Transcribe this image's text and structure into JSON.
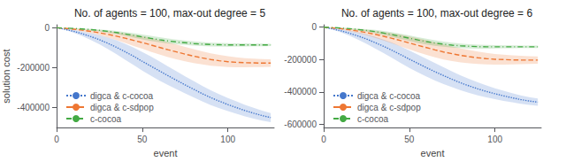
{
  "chart_data": [
    {
      "type": "line",
      "title": "No. of agents = 100, max-out degree = 5",
      "xlabel": "event",
      "ylabel": "solution cost",
      "x": [
        0,
        5,
        10,
        15,
        20,
        25,
        30,
        35,
        40,
        45,
        50,
        55,
        60,
        65,
        70,
        75,
        80,
        85,
        90,
        95,
        100,
        105,
        110,
        115,
        120,
        125
      ],
      "series": [
        {
          "name": "digca & c-cocoa",
          "color": "#4477CC",
          "line_style": "dotted",
          "values": [
            0,
            -8000,
            -18000,
            -30000,
            -44000,
            -60000,
            -78000,
            -98000,
            -120000,
            -143000,
            -168000,
            -192000,
            -216000,
            -240000,
            -263000,
            -286000,
            -308000,
            -330000,
            -350000,
            -368000,
            -385000,
            -400000,
            -415000,
            -428000,
            -440000,
            -450000
          ],
          "std": [
            0,
            3000,
            7000,
            12000,
            17000,
            23000,
            29000,
            35000,
            40000,
            44000,
            47000,
            48000,
            48000,
            47000,
            45000,
            43000,
            41000,
            39000,
            37000,
            35000,
            33000,
            31000,
            29000,
            27000,
            25000,
            23000
          ]
        },
        {
          "name": "digca & c-sdpop",
          "color": "#EE7733",
          "line_style": "dashed",
          "values": [
            0,
            -3000,
            -7000,
            -12000,
            -18000,
            -25000,
            -33000,
            -42000,
            -52000,
            -63000,
            -74000,
            -86000,
            -98000,
            -110000,
            -121000,
            -132000,
            -142000,
            -151000,
            -159000,
            -165000,
            -170000,
            -173000,
            -175000,
            -176000,
            -177000,
            -177000
          ],
          "std": [
            0,
            1500,
            3500,
            6000,
            9000,
            12000,
            16000,
            20000,
            24000,
            28000,
            31000,
            34000,
            36000,
            37000,
            37000,
            36000,
            35000,
            33000,
            31000,
            29000,
            27000,
            25000,
            23000,
            21000,
            20000,
            19000
          ]
        },
        {
          "name": "c-cocoa",
          "color": "#44AA44",
          "line_style": "dashdot",
          "values": [
            0,
            -1500,
            -3500,
            -6000,
            -9000,
            -13000,
            -18000,
            -24000,
            -31000,
            -38000,
            -46000,
            -53000,
            -60000,
            -66000,
            -71000,
            -75000,
            -79000,
            -82000,
            -84000,
            -85000,
            -86000,
            -86000,
            -86000,
            -86000,
            -86000,
            -86000
          ],
          "std": [
            0,
            600,
            1400,
            2400,
            3600,
            5000,
            6500,
            8000,
            9500,
            11000,
            12000,
            12500,
            12500,
            12000,
            11500,
            11000,
            10500,
            10000,
            9500,
            9000,
            8500,
            8000,
            7500,
            7000,
            6500,
            6000
          ]
        }
      ],
      "xlim": [
        0,
        127
      ],
      "xticks": [
        0,
        50,
        100
      ],
      "ylim": [
        -500000,
        15000
      ],
      "yticks": [
        0,
        -200000,
        -400000
      ],
      "legend": "lower left",
      "grid": false
    },
    {
      "type": "line",
      "title": "No. of agents = 100, max-out degree = 6",
      "xlabel": "event",
      "x": [
        0,
        5,
        10,
        15,
        20,
        25,
        30,
        35,
        40,
        45,
        50,
        55,
        60,
        65,
        70,
        75,
        80,
        85,
        90,
        95,
        100,
        105,
        110,
        115,
        120,
        125
      ],
      "series": [
        {
          "name": "digca & c-cocoa",
          "color": "#4477CC",
          "line_style": "dotted",
          "values": [
            0,
            -10000,
            -22000,
            -37000,
            -54000,
            -73000,
            -95000,
            -118000,
            -143000,
            -170000,
            -197000,
            -224000,
            -250000,
            -275000,
            -299000,
            -322000,
            -344000,
            -363000,
            -381000,
            -397000,
            -411000,
            -424000,
            -436000,
            -447000,
            -456000,
            -463000
          ],
          "std": [
            0,
            4000,
            9000,
            15000,
            22000,
            29000,
            36000,
            42000,
            47000,
            51000,
            54000,
            55000,
            55000,
            54000,
            52000,
            49000,
            46000,
            43000,
            40000,
            37000,
            34000,
            31000,
            28000,
            26000,
            24000,
            22000
          ]
        },
        {
          "name": "digca & c-sdpop",
          "color": "#EE7733",
          "line_style": "dashed",
          "values": [
            0,
            -4000,
            -9000,
            -16000,
            -24000,
            -33000,
            -44000,
            -56000,
            -69000,
            -83000,
            -97000,
            -112000,
            -126000,
            -140000,
            -153000,
            -164000,
            -174000,
            -182000,
            -189000,
            -194000,
            -198000,
            -200000,
            -202000,
            -203000,
            -203000,
            -203000
          ],
          "std": [
            0,
            2000,
            4500,
            8000,
            12000,
            16000,
            21000,
            26000,
            31000,
            36000,
            40000,
            43000,
            45000,
            46000,
            46000,
            45000,
            43000,
            41000,
            38000,
            36000,
            33000,
            31000,
            28000,
            26000,
            24000,
            23000
          ]
        },
        {
          "name": "c-cocoa",
          "color": "#44AA44",
          "line_style": "dashdot",
          "values": [
            0,
            -2000,
            -5000,
            -9000,
            -14000,
            -20000,
            -27000,
            -36000,
            -46000,
            -57000,
            -68000,
            -79000,
            -89000,
            -98000,
            -105000,
            -111000,
            -115000,
            -118000,
            -120000,
            -121000,
            -121000,
            -121000,
            -121000,
            -121000,
            -121000,
            -121000
          ],
          "std": [
            0,
            800,
            2000,
            3500,
            5500,
            7500,
            10000,
            12500,
            14500,
            16000,
            17000,
            17500,
            17500,
            17000,
            16000,
            15000,
            14000,
            13000,
            12000,
            11000,
            10000,
            9000,
            8500,
            8000,
            7500,
            7000
          ]
        }
      ],
      "xlim": [
        0,
        127
      ],
      "xticks": [
        0,
        50,
        100
      ],
      "ylim": [
        -620000,
        15000
      ],
      "yticks": [
        0,
        -200000,
        -400000,
        -600000
      ],
      "legend": "lower left",
      "grid": false
    }
  ]
}
